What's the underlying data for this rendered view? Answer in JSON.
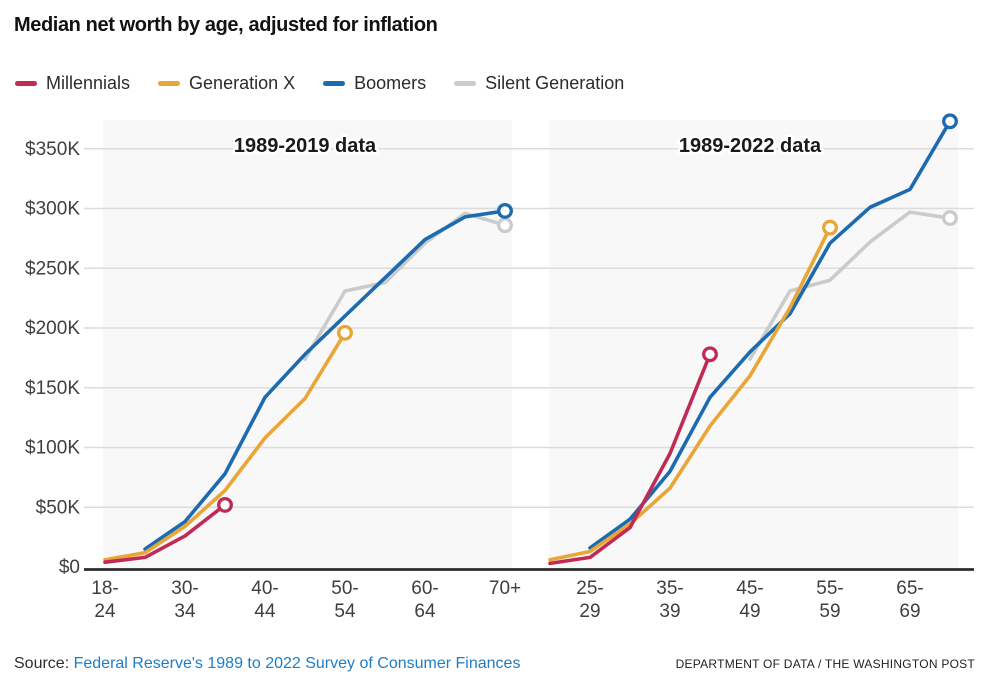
{
  "title": "Median net worth by age, adjusted for inflation",
  "legend": [
    {
      "name": "Millennials",
      "color": "#c02b55"
    },
    {
      "name": "Generation X",
      "color": "#eaa537"
    },
    {
      "name": "Boomers",
      "color": "#1c6bb0"
    },
    {
      "name": "Silent Generation",
      "color": "#cbcbcb"
    }
  ],
  "source": {
    "prefix": "Source: ",
    "link_text": "Federal Reserve's 1989 to 2022 Survey of Consumer Finances",
    "attribution": "DEPARTMENT OF DATA / THE WASHINGTON POST"
  },
  "chart_data": [
    {
      "type": "line",
      "title": "1989-2019 data",
      "unit": "USD thousands",
      "categories": [
        "18-24",
        "25-29",
        "30-34",
        "35-39",
        "40-44",
        "45-49",
        "50-54",
        "55-59",
        "60-64",
        "65-69",
        "70+"
      ],
      "labeled_category_indices": [
        0,
        2,
        4,
        6,
        8,
        10
      ],
      "ylim": [
        0,
        375
      ],
      "y_ticks": {
        "values": [
          0,
          50,
          100,
          150,
          200,
          250,
          300,
          350
        ],
        "labels": [
          "$0",
          "$50K",
          "$100K",
          "$150K",
          "$200K",
          "$250K",
          "$300K",
          "$350K"
        ]
      },
      "grid": true,
      "series": [
        {
          "name": "Millennials",
          "color": "#c02b55",
          "start_index": 0,
          "values": [
            4,
            8,
            26,
            52
          ],
          "end_marker": true
        },
        {
          "name": "Generation X",
          "color": "#eaa537",
          "start_index": 0,
          "values": [
            6,
            12,
            34,
            64,
            108,
            141,
            196
          ],
          "end_marker": true
        },
        {
          "name": "Boomers",
          "color": "#1c6bb0",
          "start_index": 1,
          "values": [
            15,
            38,
            78,
            142,
            178,
            210,
            242,
            274,
            293,
            298
          ],
          "end_marker": true
        },
        {
          "name": "Silent Generation",
          "color": "#cbcbcb",
          "start_index": 5,
          "values": [
            174,
            231,
            238,
            271,
            296,
            286
          ],
          "end_marker": true
        }
      ]
    },
    {
      "type": "line",
      "title": "1989-2022 data",
      "unit": "USD thousands",
      "categories": [
        "18-24",
        "25-29",
        "30-34",
        "35-39",
        "40-44",
        "45-49",
        "50-54",
        "55-59",
        "60-64",
        "65-69",
        "70+"
      ],
      "labeled_category_indices": [
        1,
        3,
        5,
        7,
        9
      ],
      "ylim": [
        0,
        375
      ],
      "y_ticks": {
        "values": [
          0,
          50,
          100,
          150,
          200,
          250,
          300,
          350
        ],
        "labels": [
          "$0",
          "$50K",
          "$100K",
          "$150K",
          "$200K",
          "$250K",
          "$300K",
          "$350K"
        ]
      },
      "grid": true,
      "series": [
        {
          "name": "Millennials",
          "color": "#c02b55",
          "start_index": 0,
          "values": [
            3,
            8,
            33,
            95,
            178
          ],
          "end_marker": true
        },
        {
          "name": "Generation X",
          "color": "#eaa537",
          "start_index": 0,
          "values": [
            6,
            13,
            36,
            66,
            118,
            160,
            217,
            284
          ],
          "end_marker": true
        },
        {
          "name": "Boomers",
          "color": "#1c6bb0",
          "start_index": 1,
          "values": [
            16,
            40,
            80,
            142,
            180,
            212,
            271,
            301,
            316,
            373
          ],
          "end_marker": true
        },
        {
          "name": "Silent Generation",
          "color": "#cbcbcb",
          "start_index": 5,
          "values": [
            174,
            231,
            240,
            272,
            297,
            292
          ],
          "end_marker": true
        }
      ]
    }
  ],
  "style_colors": {
    "panel_background": "#f8f8f8",
    "gridline": "#dcdcdc",
    "axis_line": "#2b2b2b",
    "tick_label": "#3f3f3f",
    "panel_title": "#1a1a1a"
  }
}
